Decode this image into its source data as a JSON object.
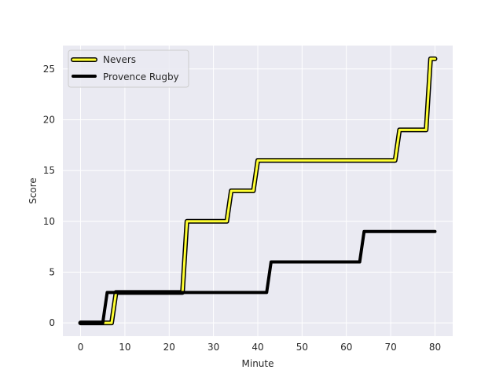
{
  "chart_data": {
    "type": "line",
    "title": "",
    "xlabel": "Minute",
    "ylabel": "Score",
    "xlim": [
      -4,
      84
    ],
    "ylim": [
      -1.3,
      27.3
    ],
    "xticks": [
      0,
      10,
      20,
      30,
      40,
      50,
      60,
      70,
      80
    ],
    "yticks": [
      0,
      5,
      10,
      15,
      20,
      25
    ],
    "grid": true,
    "legend_position": "top-left",
    "background": "#eaeaf2",
    "series": [
      {
        "name": "Nevers",
        "color": "#ffff33",
        "outline": "#000000",
        "points": [
          [
            0,
            0
          ],
          [
            7,
            0
          ],
          [
            8,
            3
          ],
          [
            23,
            3
          ],
          [
            24,
            10
          ],
          [
            33,
            10
          ],
          [
            34,
            13
          ],
          [
            39,
            13
          ],
          [
            40,
            16
          ],
          [
            71,
            16
          ],
          [
            72,
            19
          ],
          [
            78,
            19
          ],
          [
            79,
            26
          ],
          [
            80,
            26
          ]
        ]
      },
      {
        "name": "Provence Rugby",
        "color": "#000000",
        "points": [
          [
            0,
            0
          ],
          [
            5,
            0
          ],
          [
            6,
            3
          ],
          [
            42,
            3
          ],
          [
            43,
            6
          ],
          [
            63,
            6
          ],
          [
            64,
            9
          ],
          [
            80,
            9
          ]
        ]
      }
    ]
  }
}
